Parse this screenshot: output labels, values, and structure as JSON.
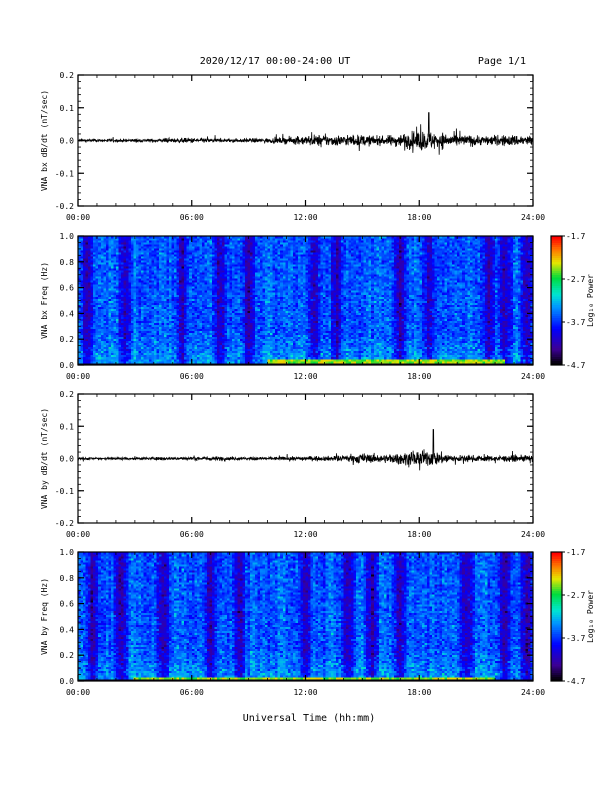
{
  "header": {
    "date_range": "2020/12/17  00:00-24:00 UT",
    "page": "Page 1/1"
  },
  "xaxis_label": "Universal Time (hh:mm)",
  "colors": {
    "trace": "#000000",
    "background": "#ffffff"
  },
  "chart_data": [
    {
      "type": "line",
      "ylabel": "VNA bx dB/dt (nT/sec)",
      "x_ticks": [
        "00:00",
        "06:00",
        "12:00",
        "18:00",
        "24:00"
      ],
      "xlim": [
        "00:00",
        "24:00"
      ],
      "ylim": [
        -0.2,
        0.2
      ],
      "y_ticks": [
        "0.2",
        "0.1",
        "0.0",
        "-0.1",
        "-0.2"
      ],
      "activity": [
        {
          "t": "00:00",
          "amp": 0.008
        },
        {
          "t": "02:00",
          "amp": 0.008
        },
        {
          "t": "04:00",
          "amp": 0.009
        },
        {
          "t": "06:00",
          "amp": 0.014
        },
        {
          "t": "07:30",
          "amp": 0.009
        },
        {
          "t": "10:00",
          "amp": 0.012
        },
        {
          "t": "11:30",
          "amp": 0.02
        },
        {
          "t": "12:30",
          "amp": 0.03
        },
        {
          "t": "14:00",
          "amp": 0.028
        },
        {
          "t": "15:00",
          "amp": 0.03
        },
        {
          "t": "16:00",
          "amp": 0.022
        },
        {
          "t": "17:00",
          "amp": 0.035
        },
        {
          "t": "18:00",
          "amp": 0.055
        },
        {
          "t": "19:00",
          "amp": 0.045
        },
        {
          "t": "20:00",
          "amp": 0.032
        },
        {
          "t": "21:30",
          "amp": 0.025
        },
        {
          "t": "23:00",
          "amp": 0.03
        },
        {
          "t": "24:00",
          "amp": 0.028
        }
      ],
      "peak": {
        "t": "18:30",
        "value": 0.085
      }
    },
    {
      "type": "heatmap",
      "ylabel": "VNA bx Freq (Hz)",
      "x_ticks": [
        "00:00",
        "06:00",
        "12:00",
        "18:00",
        "24:00"
      ],
      "ylim": [
        0.0,
        1.0
      ],
      "y_ticks": [
        "1.0",
        "0.8",
        "0.6",
        "0.4",
        "0.2",
        "0.0"
      ],
      "colorbar": {
        "label": "Log₁₀ Power",
        "range": [
          -4.7,
          -1.7
        ],
        "ticks": [
          "-1.7",
          "-2.7",
          "-3.7",
          "-4.7"
        ]
      },
      "dark_bands": [
        "00:30",
        "02:30",
        "05:30",
        "07:30",
        "09:00",
        "12:30",
        "13:40",
        "17:00",
        "18:30",
        "21:40",
        "22:30",
        "23:40"
      ],
      "low_freq_enhancement": {
        "from": "10:00",
        "to": "22:30",
        "max_freq": 0.05
      }
    },
    {
      "type": "line",
      "ylabel": "VNA by dB/dt (nT/sec)",
      "x_ticks": [
        "00:00",
        "06:00",
        "12:00",
        "18:00",
        "24:00"
      ],
      "xlim": [
        "00:00",
        "24:00"
      ],
      "ylim": [
        -0.2,
        0.2
      ],
      "y_ticks": [
        "0.2",
        "0.1",
        "0.0",
        "-0.1",
        "-0.2"
      ],
      "activity": [
        {
          "t": "00:00",
          "amp": 0.007
        },
        {
          "t": "02:00",
          "amp": 0.007
        },
        {
          "t": "04:00",
          "amp": 0.008
        },
        {
          "t": "06:00",
          "amp": 0.008
        },
        {
          "t": "07:00",
          "amp": 0.012
        },
        {
          "t": "09:00",
          "amp": 0.007
        },
        {
          "t": "11:00",
          "amp": 0.01
        },
        {
          "t": "13:00",
          "amp": 0.012
        },
        {
          "t": "14:00",
          "amp": 0.016
        },
        {
          "t": "15:00",
          "amp": 0.028
        },
        {
          "t": "16:00",
          "amp": 0.02
        },
        {
          "t": "17:00",
          "amp": 0.03
        },
        {
          "t": "18:00",
          "amp": 0.045
        },
        {
          "t": "19:00",
          "amp": 0.035
        },
        {
          "t": "20:00",
          "amp": 0.018
        },
        {
          "t": "22:00",
          "amp": 0.015
        },
        {
          "t": "24:00",
          "amp": 0.018
        }
      ],
      "peak": {
        "t": "18:45",
        "value": 0.09
      }
    },
    {
      "type": "heatmap",
      "ylabel": "VNA by Freq (Hz)",
      "x_ticks": [
        "00:00",
        "06:00",
        "12:00",
        "18:00",
        "24:00"
      ],
      "ylim": [
        0.0,
        1.0
      ],
      "y_ticks": [
        "1.0",
        "0.8",
        "0.6",
        "0.4",
        "0.2",
        "0.0"
      ],
      "colorbar": {
        "label": "Log₁₀ Power",
        "range": [
          -4.7,
          -1.7
        ],
        "ticks": [
          "-1.7",
          "-2.7",
          "-3.7",
          "-4.7"
        ]
      },
      "dark_bands": [
        "00:45",
        "02:15",
        "04:30",
        "07:00",
        "08:30",
        "12:00",
        "14:15",
        "15:30",
        "17:00",
        "20:30",
        "22:30",
        "23:40"
      ],
      "low_freq_enhancement": {
        "from": "03:00",
        "to": "22:00",
        "max_freq": 0.03
      }
    }
  ]
}
